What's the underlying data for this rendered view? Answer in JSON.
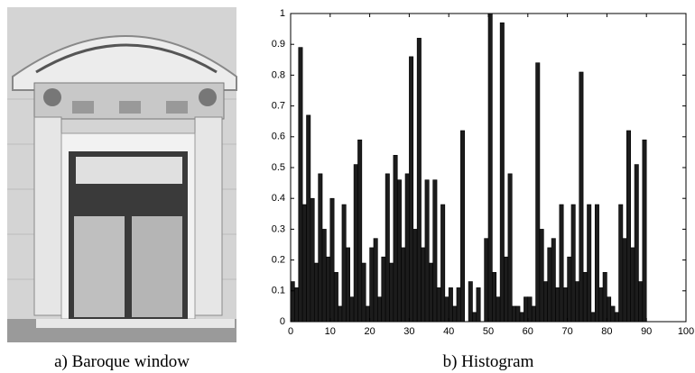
{
  "image_caption": "a) Baroque window",
  "chart_data": {
    "type": "histogram",
    "caption": "b) Histogram",
    "bins": [
      0,
      1,
      2,
      3,
      4,
      5,
      6,
      7,
      8,
      9,
      10,
      11,
      12,
      13,
      14,
      15,
      16,
      17,
      18,
      19,
      20,
      21,
      22,
      23,
      24,
      25,
      26,
      27,
      28,
      29,
      30,
      31,
      32,
      33,
      34,
      35,
      36,
      37,
      38,
      39,
      40,
      41,
      42,
      43,
      44,
      45,
      46,
      47,
      48,
      49,
      50,
      51,
      52,
      53,
      54,
      55,
      56,
      57,
      58,
      59,
      60,
      61,
      62,
      63,
      64,
      65,
      66,
      67,
      68,
      69,
      70,
      71,
      72,
      73,
      74,
      75,
      76,
      77,
      78,
      79,
      80,
      81,
      82,
      83,
      84,
      85,
      86,
      87,
      88,
      89,
      90
    ],
    "values": [
      0.13,
      0.11,
      0.89,
      0.38,
      0.67,
      0.4,
      0.19,
      0.48,
      0.3,
      0.21,
      0.4,
      0.16,
      0.05,
      0.38,
      0.24,
      0.08,
      0.51,
      0.59,
      0.19,
      0.05,
      0.24,
      0.27,
      0.08,
      0.21,
      0.48,
      0.19,
      0.54,
      0.46,
      0.24,
      0.48,
      0.86,
      0.3,
      0.92,
      0.24,
      0.46,
      0.19,
      0.46,
      0.11,
      0.38,
      0.08,
      0.11,
      0.05,
      0.11,
      0.62,
      0,
      0.13,
      0.03,
      0.11,
      0,
      0.27,
      1,
      0.16,
      0.08,
      0.97,
      0.21,
      0.48,
      0.05,
      0.05,
      0.03,
      0.08,
      0.08,
      0.05,
      0.84,
      0.3,
      0.13,
      0.24,
      0.27,
      0.11,
      0.38,
      0.11,
      0.21,
      0.38,
      0.13,
      0.81,
      0.16,
      0.38,
      0.03,
      0.38,
      0.11,
      0.16,
      0.08,
      0.05,
      0.03,
      0.38,
      0.27,
      0.62,
      0.24,
      0.51,
      0.13,
      0.59
    ],
    "color": "#1c1c1c",
    "xlim": [
      0,
      100
    ],
    "xticks": [
      0,
      10,
      20,
      30,
      40,
      50,
      60,
      70,
      80,
      90,
      100
    ],
    "ylim": [
      0,
      1
    ],
    "yticks": [
      0,
      0.1,
      0.2,
      0.3,
      0.4,
      0.5,
      0.6,
      0.7,
      0.8,
      0.9,
      1
    ]
  }
}
